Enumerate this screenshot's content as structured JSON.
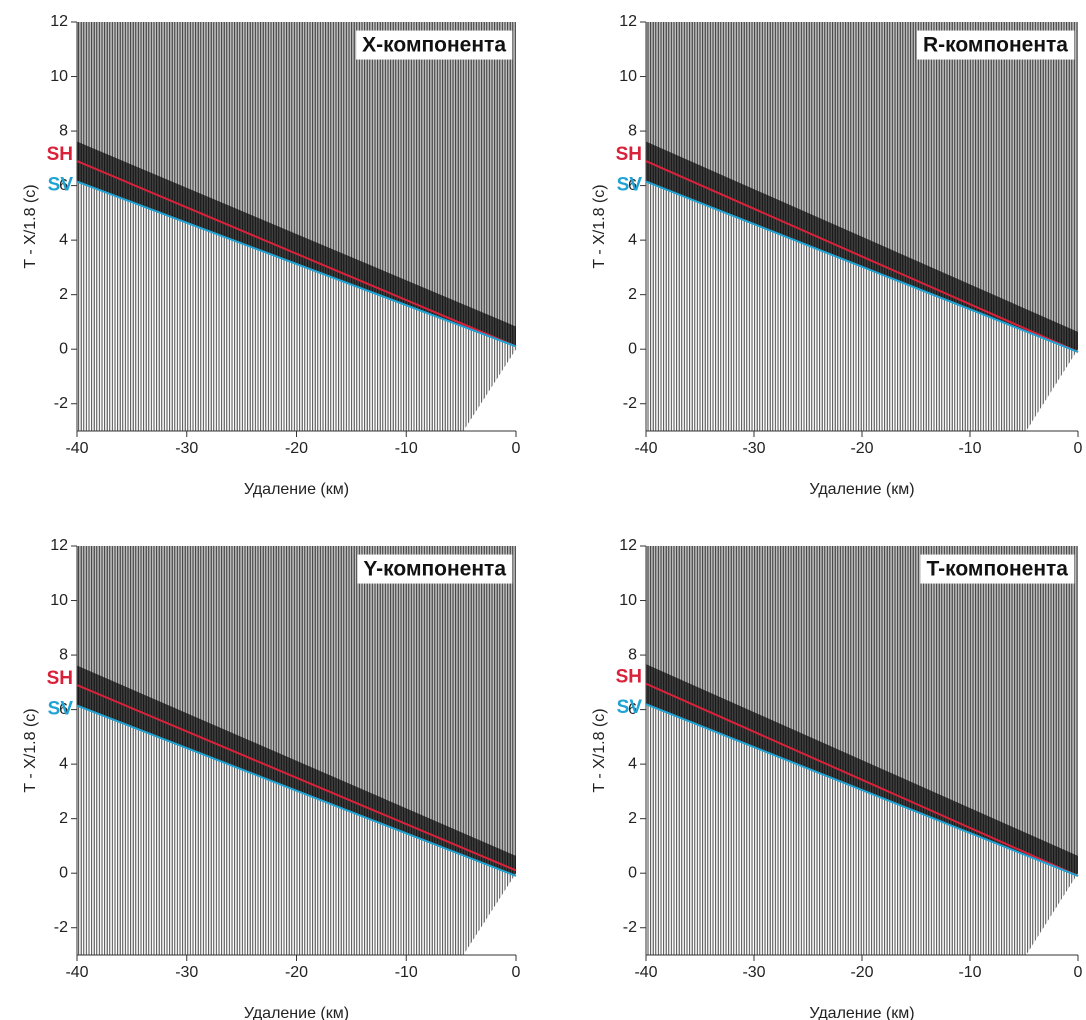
{
  "chart_data": [
    {
      "type": "line",
      "title": "X-компонента",
      "xlabel": "Удаление (км)",
      "ylabel": "T - X/1.8 (с)",
      "xlim": [
        -40,
        0
      ],
      "ylim": [
        -3,
        12
      ],
      "xticks": [
        -40,
        -30,
        -20,
        -10,
        0
      ],
      "yticks": [
        -2,
        0,
        2,
        4,
        6,
        8,
        10,
        12
      ],
      "x": [
        -40,
        0
      ],
      "series": [
        {
          "name": "SH",
          "color": "#d9213a",
          "values": [
            6.9,
            0.1
          ]
        },
        {
          "name": "SV",
          "color": "#1fa3d4",
          "values": [
            6.15,
            0.1
          ]
        }
      ]
    },
    {
      "type": "line",
      "title": "R-компонента",
      "xlabel": "Удаление (км)",
      "ylabel": "T - X/1.8 (с)",
      "xlim": [
        -40,
        0
      ],
      "ylim": [
        -3,
        12
      ],
      "xticks": [
        -40,
        -30,
        -20,
        -10,
        0
      ],
      "yticks": [
        -2,
        0,
        2,
        4,
        6,
        8,
        10,
        12
      ],
      "x": [
        -40,
        0
      ],
      "series": [
        {
          "name": "SH",
          "color": "#d9213a",
          "values": [
            6.9,
            -0.1
          ]
        },
        {
          "name": "SV",
          "color": "#1fa3d4",
          "values": [
            6.15,
            -0.1
          ]
        }
      ]
    },
    {
      "type": "line",
      "title": "Y-компонента",
      "xlabel": "Удаление (км)",
      "ylabel": "T - X/1.8 (с)",
      "xlim": [
        -40,
        0
      ],
      "ylim": [
        -3,
        12
      ],
      "xticks": [
        -40,
        -30,
        -20,
        -10,
        0
      ],
      "yticks": [
        -2,
        0,
        2,
        4,
        6,
        8,
        10,
        12
      ],
      "x": [
        -40,
        0
      ],
      "series": [
        {
          "name": "SH",
          "color": "#d9213a",
          "values": [
            6.9,
            0.1
          ]
        },
        {
          "name": "SV",
          "color": "#1fa3d4",
          "values": [
            6.15,
            -0.1
          ]
        }
      ]
    },
    {
      "type": "line",
      "title": "T-компонента",
      "xlabel": "Удаление (км)",
      "ylabel": "T - X/1.8 (с)",
      "xlim": [
        -40,
        0
      ],
      "ylim": [
        -3,
        12
      ],
      "xticks": [
        -40,
        -30,
        -20,
        -10,
        0
      ],
      "yticks": [
        -2,
        0,
        2,
        4,
        6,
        8,
        10,
        12
      ],
      "x": [
        -40,
        0
      ],
      "series": [
        {
          "name": "SH",
          "color": "#d9213a",
          "values": [
            6.95,
            -0.1
          ]
        },
        {
          "name": "SV",
          "color": "#1fa3d4",
          "values": [
            6.2,
            -0.1
          ]
        }
      ]
    }
  ]
}
